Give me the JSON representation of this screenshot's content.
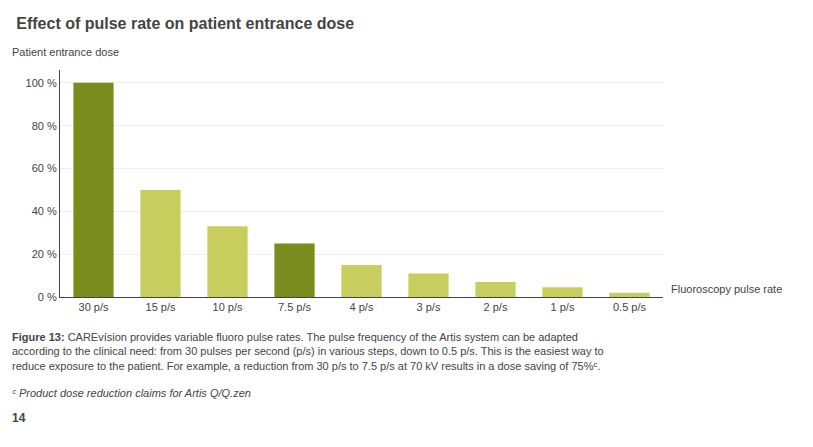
{
  "chart_data": {
    "type": "bar",
    "title": "Effect of pulse rate on patient entrance dose",
    "ylabel": "Patient entrance dose",
    "xlabel": "Fluoroscopy pulse rate",
    "categories": [
      "30 p/s",
      "15 p/s",
      "10 p/s",
      "7.5 p/s",
      "4 p/s",
      "3 p/s",
      "2 p/s",
      "1 p/s",
      "0.5 p/s"
    ],
    "values": [
      100,
      50,
      33,
      25,
      15,
      11,
      7,
      4.5,
      2
    ],
    "colors": [
      "#7b8c1e",
      "#c8ce5e",
      "#c8ce5e",
      "#7b8c1e",
      "#c8ce5e",
      "#c8ce5e",
      "#c8ce5e",
      "#c8ce5e",
      "#c8ce5e"
    ],
    "ylim": [
      0,
      106
    ],
    "yticks": [
      {
        "value": 0,
        "label": "0 %"
      },
      {
        "value": 20,
        "label": "20 %"
      },
      {
        "value": 40,
        "label": "40 %"
      },
      {
        "value": 60,
        "label": "60 %"
      },
      {
        "value": 80,
        "label": "80 %"
      },
      {
        "value": 100,
        "label": "100 %"
      }
    ],
    "grid": true,
    "annotations": [
      "Figure 13:",
      "CAREvísion provides variable fluoro pulse rates. The pulse frequency of the Artis system can be adapted according to the clinical need: from 30 pulses per second (p/s) in various steps, down to 0.5 p/s. This is the easiest way to reduce exposure to the patient. For example, a reduction from 30 p/s to 7.5 p/s at 70 kV results in a dose saving of 75%ᶜ.",
      "ᶜ Product dose reduction claims for Artis Q/Q.zen",
      "14"
    ]
  }
}
